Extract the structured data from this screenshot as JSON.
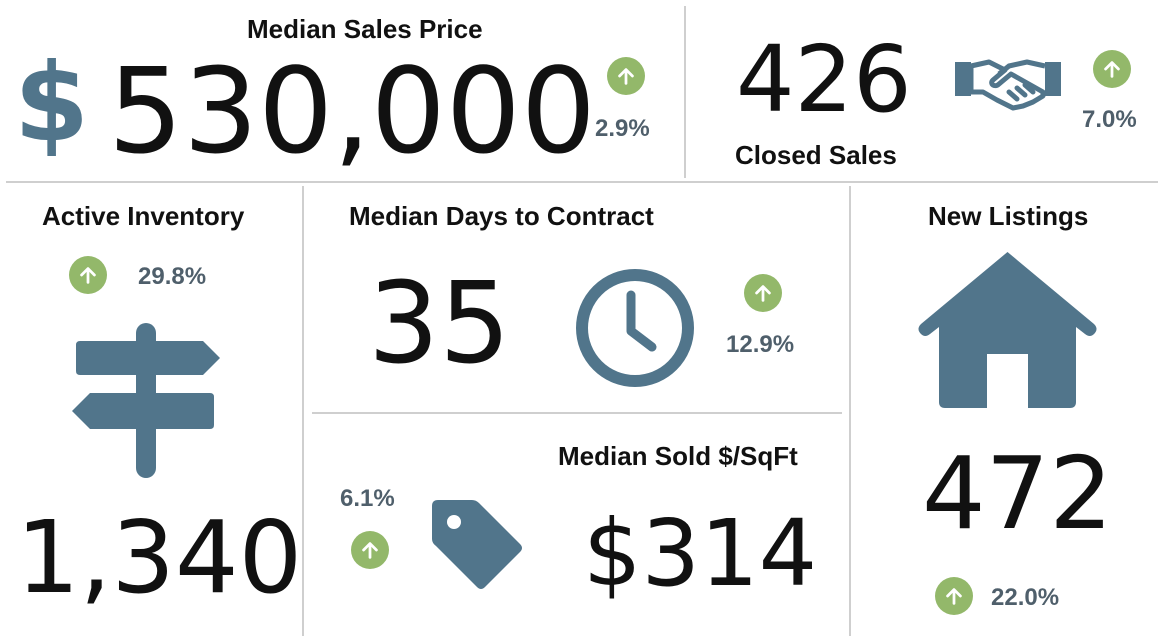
{
  "colors": {
    "icon": "#51758b",
    "up_badge": "#93b86a",
    "percent_text": "#4f5f6b",
    "divider": "#cfcfcf"
  },
  "median_sales_price": {
    "title": "Median Sales Price",
    "currency_symbol": "$",
    "value": "530,000",
    "change": "2.9%",
    "trend_icon": "arrow-up-icon"
  },
  "closed_sales": {
    "value": "426",
    "label": "Closed Sales",
    "change": "7.0%",
    "icon": "handshake-icon",
    "trend_icon": "arrow-up-icon"
  },
  "active_inventory": {
    "title": "Active Inventory",
    "change": "29.8%",
    "value": "1,340",
    "icon": "signpost-icon",
    "trend_icon": "arrow-up-icon"
  },
  "median_days_to_contract": {
    "title": "Median Days to Contract",
    "value": "35",
    "change": "12.9%",
    "icon": "clock-icon",
    "trend_icon": "arrow-up-icon"
  },
  "median_sold_sqft": {
    "title": "Median Sold $/SqFt",
    "change": "6.1%",
    "value": "$314",
    "icon": "price-tag-icon",
    "trend_icon": "arrow-up-icon"
  },
  "new_listings": {
    "title": "New Listings",
    "value": "472",
    "change": "22.0%",
    "icon": "house-icon",
    "trend_icon": "arrow-up-icon"
  }
}
